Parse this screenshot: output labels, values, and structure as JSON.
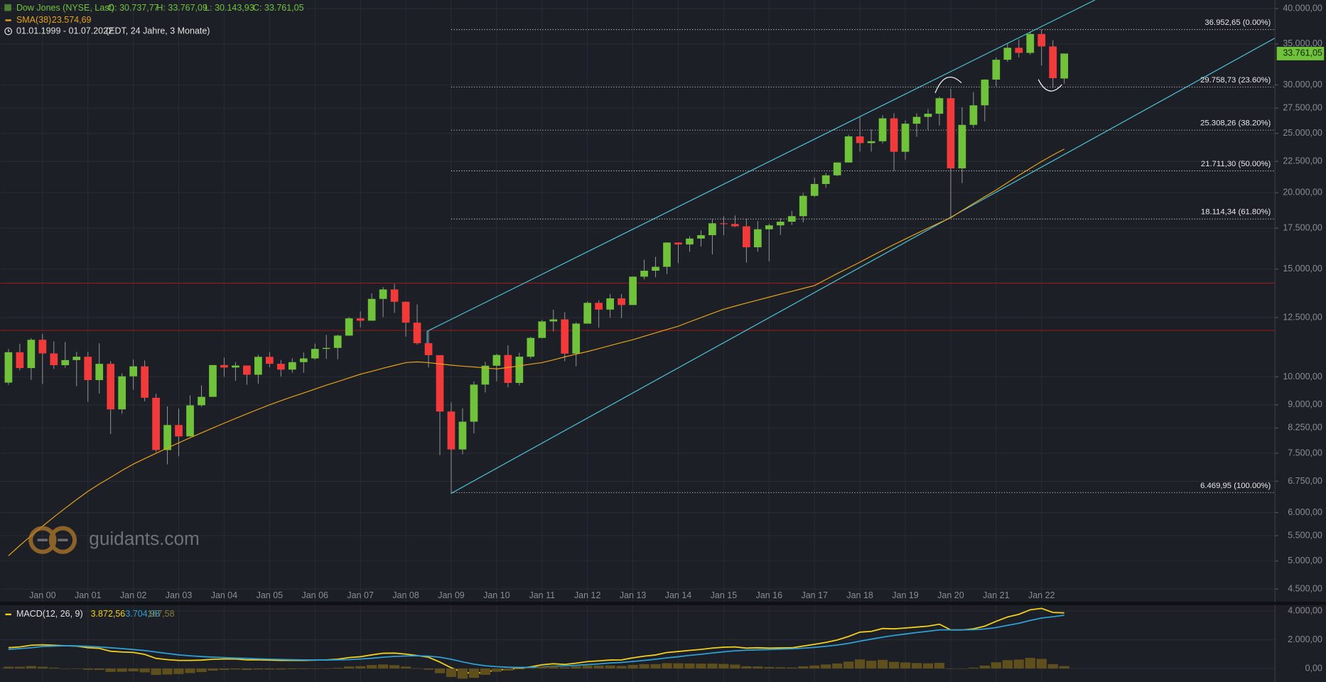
{
  "watermark": "guidants.com",
  "chart_data": [
    {
      "type": "candlestick",
      "title": "Dow Jones (NYSE, Last)",
      "ohlc_header": [
        {
          "value": 30737.77,
          "label": "O: 30.737,77"
        },
        {
          "value": 33767.09,
          "label": "H: 33.767,09"
        },
        {
          "value": 30143.93,
          "label": "L: 30.143,93"
        },
        {
          "value": 33761.05,
          "label": "C: 33.761,05"
        }
      ],
      "period": "01.01.1999 - 01.07.2022",
      "period_note": "(EDT, 24 Jahre, 3 Monate)",
      "last_price": {
        "value": 33761.05,
        "label": "33.761,05"
      },
      "log_scale": true,
      "grid": true,
      "up_color": "#6fc23a",
      "down_color": "#f23a3a",
      "categories": [
        null,
        null,
        null,
        "Jan 00",
        null,
        null,
        null,
        "Jan 01",
        null,
        null,
        null,
        "Jan 02",
        null,
        null,
        null,
        "Jan 03",
        null,
        null,
        null,
        "Jan 04",
        null,
        null,
        null,
        "Jan 05",
        null,
        null,
        null,
        "Jan 06",
        null,
        null,
        null,
        "Jan 07",
        null,
        null,
        null,
        "Jan 08",
        null,
        null,
        null,
        "Jan 09",
        null,
        null,
        null,
        "Jan 10",
        null,
        null,
        null,
        "Jan 11",
        null,
        null,
        null,
        "Jan 12",
        null,
        null,
        null,
        "Jan 13",
        null,
        null,
        null,
        "Jan 14",
        null,
        null,
        null,
        "Jan 15",
        null,
        null,
        null,
        "Jan 16",
        null,
        null,
        null,
        "Jan 17",
        null,
        null,
        null,
        "Jan 18",
        null,
        null,
        null,
        "Jan 19",
        null,
        null,
        null,
        "Jan 20",
        null,
        null,
        null,
        "Jan 21",
        null,
        null,
        null,
        "Jan 22",
        null,
        null
      ],
      "open": [
        9786,
        10970,
        10337,
        11497,
        10922,
        10448,
        10651,
        10787,
        9879,
        10502,
        8848,
        10021,
        10404,
        9243,
        7592,
        8342,
        7992,
        8985,
        9275,
        10454,
        10357,
        10435,
        10080,
        10783,
        10504,
        10275,
        10569,
        10718,
        11109,
        11150,
        11679,
        12463,
        12354,
        13409,
        13896,
        13265,
        12263,
        11350,
        10851,
        8776,
        7609,
        8447,
        9712,
        10428,
        10857,
        9774,
        10788,
        11578,
        12320,
        12414,
        10913,
        12218,
        13212,
        12880,
        13437,
        13104,
        14579,
        14910,
        15130,
        16577,
        16458,
        16827,
        17043,
        17823,
        17776,
        17620,
        16285,
        17425,
        17685,
        17930,
        18308,
        19763,
        20663,
        21350,
        22405,
        24719,
        24103,
        24271,
        26458,
        23327,
        25929,
        26600,
        26917,
        28538,
        21917,
        25813,
        27782,
        30606,
        32982,
        34503,
        33844,
        36338,
        34678,
        30737.77
      ],
      "high": [
        11107,
        11326,
        11568,
        11750,
        11425,
        11401,
        10984,
        10983,
        11350,
        10610,
        10137,
        10673,
        10635,
        9380,
        8949,
        8869,
        9323,
        9686,
        10454,
        10753,
        10570,
        10437,
        10868,
        10984,
        10655,
        10720,
        10959,
        11334,
        11709,
        11719,
        12529,
        12796,
        13692,
        14021,
        14198,
        13279,
        13136,
        11867,
        10851,
        9088,
        8877,
        9829,
        10580,
        10907,
        11258,
        10948,
        11625,
        12391,
        12876,
        12753,
        12284,
        13289,
        13338,
        13653,
        13661,
        14585,
        15542,
        15709,
        16588,
        16588,
        16978,
        17350,
        18103,
        18289,
        18351,
        18137,
        17977,
        17790,
        18167,
        18668,
        19987,
        21169,
        21535,
        22420,
        24876,
        26617,
        25400,
        26769,
        26951,
        26242,
        26952,
        27398,
        28701,
        29569,
        27580,
        29199,
        30637,
        33259,
        35091,
        35631,
        36565,
        36952.65,
        35492,
        33767.09
      ],
      "low": [
        9700,
        10250,
        9885,
        9731,
        10300,
        10350,
        9654,
        9106,
        9389,
        8062,
        8700,
        9529,
        9120,
        7532,
        7197,
        7416,
        7990,
        8936,
        9275,
        10003,
        9852,
        9708,
        9749,
        10368,
        10012,
        10156,
        10156,
        10667,
        10699,
        10683,
        11670,
        12050,
        12354,
        12517,
        12724,
        11634,
        11287,
        10365,
        7449,
        6469.95,
        7470,
        8087,
        9430,
        9835,
        9614,
        9686,
        10711,
        11555,
        11862,
        10604,
        10404,
        12218,
        12035,
        12493,
        12471,
        13104,
        14434,
        14551,
        14719,
        15340,
        16015,
        16333,
        15855,
        17037,
        17576,
        15370,
        16013,
        15451,
        17063,
        17713,
        17884,
        19677,
        20379,
        21279,
        22405,
        23344,
        23344,
        24084,
        21713,
        22638,
        24680,
        25339,
        25743,
        18213,
        20736,
        25524,
        26143,
        29856,
        32720,
        33271,
        33613,
        32272,
        29653,
        30143.93
      ],
      "close": [
        10970,
        10337,
        11497,
        10922,
        10448,
        10651,
        10787,
        9879,
        10502,
        8848,
        10021,
        10404,
        9243,
        7592,
        8342,
        7992,
        8985,
        9275,
        10454,
        10357,
        10435,
        10080,
        10783,
        10504,
        10275,
        10569,
        10718,
        11109,
        11150,
        11679,
        12463,
        12354,
        13409,
        13896,
        13265,
        12263,
        11350,
        10851,
        8776,
        7609,
        8447,
        9712,
        10428,
        10857,
        9774,
        10788,
        11578,
        12320,
        12414,
        10913,
        12218,
        13212,
        12880,
        13437,
        13104,
        14579,
        14910,
        15130,
        16577,
        16458,
        16827,
        17043,
        17823,
        17776,
        17620,
        16285,
        17425,
        17685,
        17930,
        18308,
        19763,
        20663,
        21350,
        22405,
        24719,
        24103,
        24271,
        26458,
        23327,
        25929,
        26600,
        26917,
        28538,
        21917,
        25813,
        27782,
        30606,
        32982,
        34503,
        33844,
        36338,
        34678,
        30775,
        33761.05
      ],
      "series": [
        {
          "name": "SMA(38)",
          "color": "#e8a21c",
          "last_label": {
            "value": 23574.69,
            "label": "23.574,69"
          },
          "values": [
            5100,
            5300,
            5500,
            5700,
            5900,
            6100,
            6300,
            6500,
            6680,
            6850,
            7030,
            7200,
            7350,
            7500,
            7650,
            7800,
            7950,
            8100,
            8250,
            8400,
            8550,
            8700,
            8850,
            9000,
            9140,
            9280,
            9410,
            9550,
            9690,
            9820,
            9960,
            10100,
            10210,
            10330,
            10440,
            10550,
            10580,
            10550,
            10500,
            10450,
            10410,
            10380,
            10340,
            10300,
            10360,
            10420,
            10490,
            10550,
            10660,
            10780,
            10890,
            11000,
            11120,
            11250,
            11380,
            11500,
            11650,
            11800,
            11950,
            12100,
            12300,
            12500,
            12700,
            12900,
            13050,
            13200,
            13350,
            13500,
            13650,
            13800,
            13950,
            14100,
            14420,
            14750,
            15070,
            15400,
            15750,
            16100,
            16450,
            16800,
            17150,
            17500,
            17850,
            18200,
            18700,
            19200,
            19700,
            20200,
            20770,
            21350,
            21920,
            22500,
            23040,
            23574.69
          ]
        }
      ],
      "ylim": [
        4290,
        41300
      ],
      "yticks": [
        {
          "value": 4500,
          "label": "4.500,00"
        },
        {
          "value": 5000,
          "label": "5.000,00"
        },
        {
          "value": 5500,
          "label": "5.500,00"
        },
        {
          "value": 6000,
          "label": "6.000,00"
        },
        {
          "value": 6750,
          "label": "6.750,00"
        },
        {
          "value": 7500,
          "label": "7.500,00"
        },
        {
          "value": 8250,
          "label": "8.250,00"
        },
        {
          "value": 9000,
          "label": "9.000,00"
        },
        {
          "value": 10000,
          "label": "10.000,00"
        },
        {
          "value": 12500,
          "label": "12.500,00"
        },
        {
          "value": 15000,
          "label": "15.000,00"
        },
        {
          "value": 17500,
          "label": "17.500,00"
        },
        {
          "value": 20000,
          "label": "20.000,00"
        },
        {
          "value": 22500,
          "label": "22.500,00"
        },
        {
          "value": 25000,
          "label": "25.000,00"
        },
        {
          "value": 27500,
          "label": "27.500,00"
        },
        {
          "value": 30000,
          "label": "30.000,00"
        },
        {
          "value": 35000,
          "label": "35.000,00"
        },
        {
          "value": 40000,
          "label": "40.000,00"
        }
      ],
      "fib_levels": [
        {
          "value": 36952.65,
          "label": "36.952,65 (0.00%)"
        },
        {
          "value": 29758.73,
          "label": "29.758,73 (23.60%)"
        },
        {
          "value": 25308.26,
          "label": "25.308,26 (38.20%)"
        },
        {
          "value": 21711.3,
          "label": "21.711,30 (50.00%)"
        },
        {
          "value": 18114.34,
          "label": "18.114,34 (61.80%)"
        },
        {
          "value": 6469.95,
          "label": "6.469,95 (100.00%)"
        }
      ]
    },
    {
      "type": "macd",
      "series": [
        {
          "name": "MACD(12, 26, 9)",
          "color": "#f2cf1d",
          "last_label": {
            "value": 3872.56,
            "label": "3.872,56"
          },
          "values": [
            1450,
            1500,
            1620,
            1650,
            1620,
            1580,
            1560,
            1450,
            1400,
            1200,
            1150,
            1120,
            980,
            700,
            620,
            560,
            560,
            580,
            640,
            660,
            660,
            600,
            600,
            580,
            560,
            560,
            560,
            580,
            600,
            650,
            760,
            820,
            950,
            1060,
            1070,
            1000,
            900,
            780,
            450,
            50,
            -250,
            -350,
            -250,
            -100,
            -60,
            10,
            120,
            260,
            330,
            280,
            370,
            480,
            530,
            590,
            600,
            740,
            860,
            940,
            1110,
            1180,
            1260,
            1330,
            1420,
            1480,
            1500,
            1420,
            1440,
            1420,
            1430,
            1440,
            1560,
            1680,
            1820,
            1980,
            2230,
            2530,
            2580,
            2780,
            2760,
            2820,
            2880,
            2950,
            3080,
            2680,
            2680,
            2760,
            2950,
            3280,
            3580,
            3770,
            4080,
            4180,
            3900,
            3872.56
          ]
        },
        {
          "color": "#2e9fd6",
          "last_label": {
            "value": 3704.98,
            "label": "3.704,98"
          },
          "values": [
            1330,
            1380,
            1450,
            1530,
            1560,
            1580,
            1570,
            1540,
            1500,
            1440,
            1380,
            1320,
            1250,
            1150,
            1040,
            950,
            880,
            830,
            790,
            760,
            730,
            700,
            670,
            650,
            630,
            610,
            600,
            590,
            590,
            600,
            620,
            660,
            710,
            780,
            840,
            870,
            880,
            860,
            780,
            640,
            460,
            300,
            190,
            130,
            90,
            70,
            80,
            120,
            160,
            190,
            220,
            270,
            320,
            380,
            420,
            490,
            560,
            640,
            740,
            820,
            910,
            990,
            1080,
            1160,
            1230,
            1270,
            1300,
            1320,
            1350,
            1370,
            1410,
            1470,
            1540,
            1630,
            1750,
            1900,
            2040,
            2180,
            2300,
            2400,
            2500,
            2590,
            2690,
            2690,
            2690,
            2700,
            2750,
            2850,
            3000,
            3150,
            3340,
            3510,
            3600,
            3704.98
          ]
        },
        {
          "type": "histogram",
          "color": "#5e4f1c",
          "last_label": {
            "value": 167.58,
            "label": "167,58"
          },
          "values": [
            120,
            120,
            170,
            120,
            60,
            0,
            -10,
            -90,
            -100,
            -240,
            -230,
            -200,
            -270,
            -450,
            -420,
            -390,
            -320,
            -250,
            -150,
            -100,
            -70,
            -100,
            -70,
            -70,
            -70,
            -50,
            -40,
            -10,
            10,
            50,
            140,
            160,
            240,
            280,
            230,
            130,
            20,
            -80,
            -330,
            -590,
            -710,
            -650,
            -440,
            -230,
            -150,
            -60,
            40,
            140,
            170,
            90,
            150,
            210,
            210,
            210,
            180,
            250,
            300,
            300,
            370,
            360,
            350,
            340,
            340,
            320,
            270,
            150,
            140,
            100,
            80,
            70,
            150,
            210,
            280,
            350,
            480,
            630,
            540,
            600,
            460,
            420,
            380,
            360,
            390,
            -10,
            -10,
            60,
            200,
            430,
            580,
            620,
            740,
            670,
            300,
            167.58
          ]
        }
      ],
      "ylim": [
        -941,
        4412
      ],
      "yticks": [
        {
          "value": 0,
          "label": "0,00"
        },
        {
          "value": 2000,
          "label": "2.000,00"
        },
        {
          "value": 4000,
          "label": "4.000,00"
        }
      ]
    }
  ]
}
